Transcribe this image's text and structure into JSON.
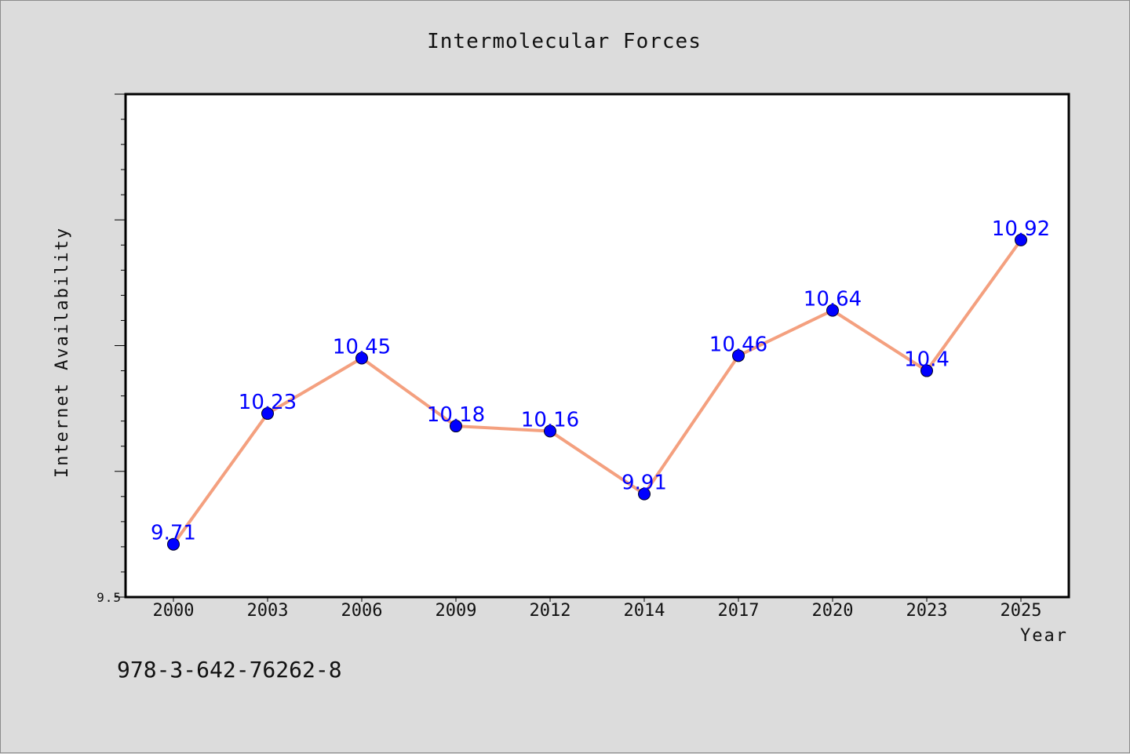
{
  "chart_data": {
    "type": "line",
    "title": "Intermolecular Forces",
    "xlabel": "Year",
    "ylabel": "Internet Availability",
    "categories": [
      "2000",
      "2003",
      "2006",
      "2009",
      "2012",
      "2014",
      "2017",
      "2020",
      "2023",
      "2025"
    ],
    "series": [
      {
        "values": [
          9.71,
          10.23,
          10.45,
          10.18,
          10.16,
          9.91,
          10.46,
          10.64,
          10.4,
          10.92
        ],
        "data_labels": [
          "9.71",
          "10.23",
          "10.45",
          "10.18",
          "10.16",
          "9.91",
          "10.46",
          "10.64",
          "10.4",
          "10.92"
        ],
        "line_color": "#f4a07f",
        "marker_color": "#0000ff"
      }
    ],
    "y_tick_labels": [
      "9.5"
    ],
    "ylim": [
      9.5,
      11.5
    ],
    "grid": false,
    "legend": "none"
  },
  "footer_text": "978-3-642-76262-8",
  "colors": {
    "background": "#dcdcdc",
    "plot_background": "#ffffff",
    "line": "#f4a07f",
    "marker": "#0000ff",
    "data_label": "#0000ff"
  }
}
